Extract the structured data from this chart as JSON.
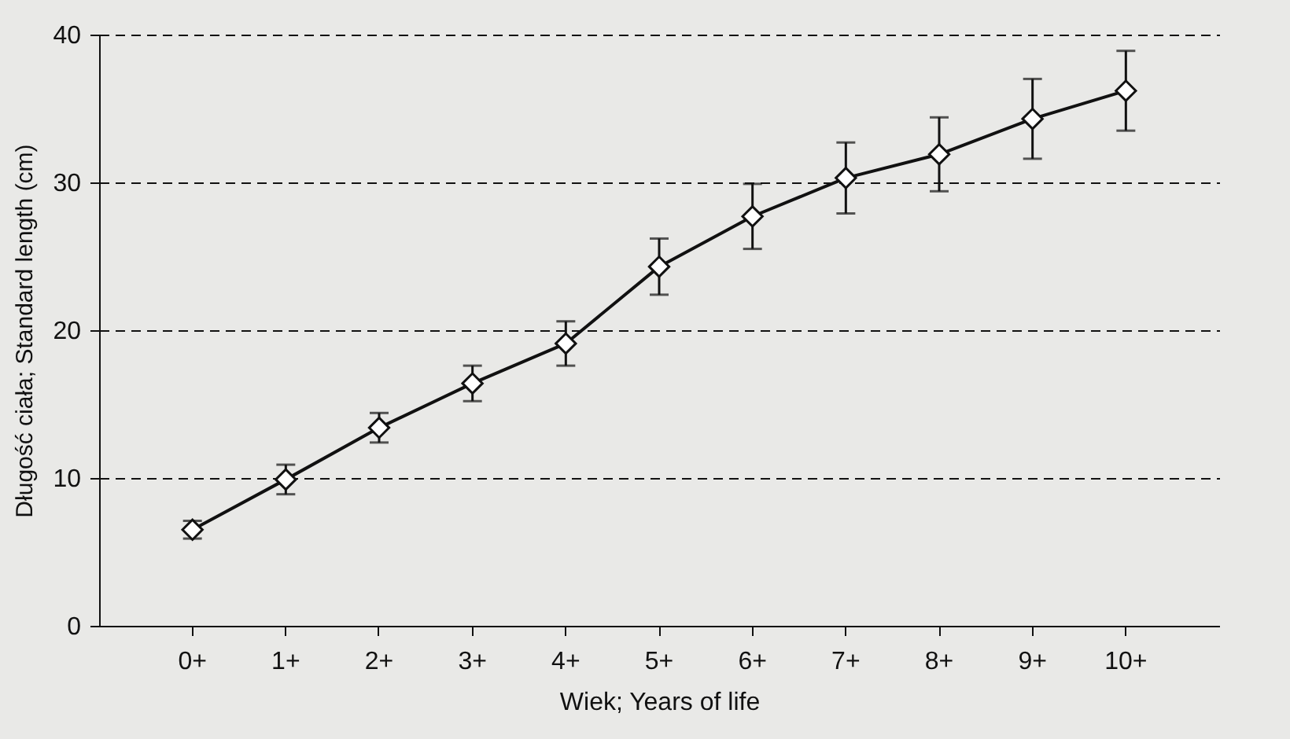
{
  "chart_data": {
    "type": "line",
    "xlabel": "Wiek; Years of life",
    "ylabel": "Długość ciała; Standard length (cm)",
    "categories": [
      "0+",
      "1+",
      "2+",
      "3+",
      "4+",
      "5+",
      "6+",
      "7+",
      "8+",
      "9+",
      "10+"
    ],
    "series": [
      {
        "color": "#111111",
        "values": [
          6.5,
          9.9,
          13.4,
          16.4,
          19.1,
          24.3,
          27.7,
          30.3,
          31.9,
          34.3,
          36.2
        ],
        "errors": [
          0.6,
          1.0,
          1.0,
          1.2,
          1.5,
          1.9,
          2.2,
          2.4,
          2.5,
          2.7,
          2.7
        ]
      }
    ],
    "ylim": [
      0,
      40
    ],
    "yticks": [
      0,
      10,
      20,
      30,
      40
    ],
    "grid": "y",
    "marker": "diamond",
    "line_style": "solid"
  }
}
